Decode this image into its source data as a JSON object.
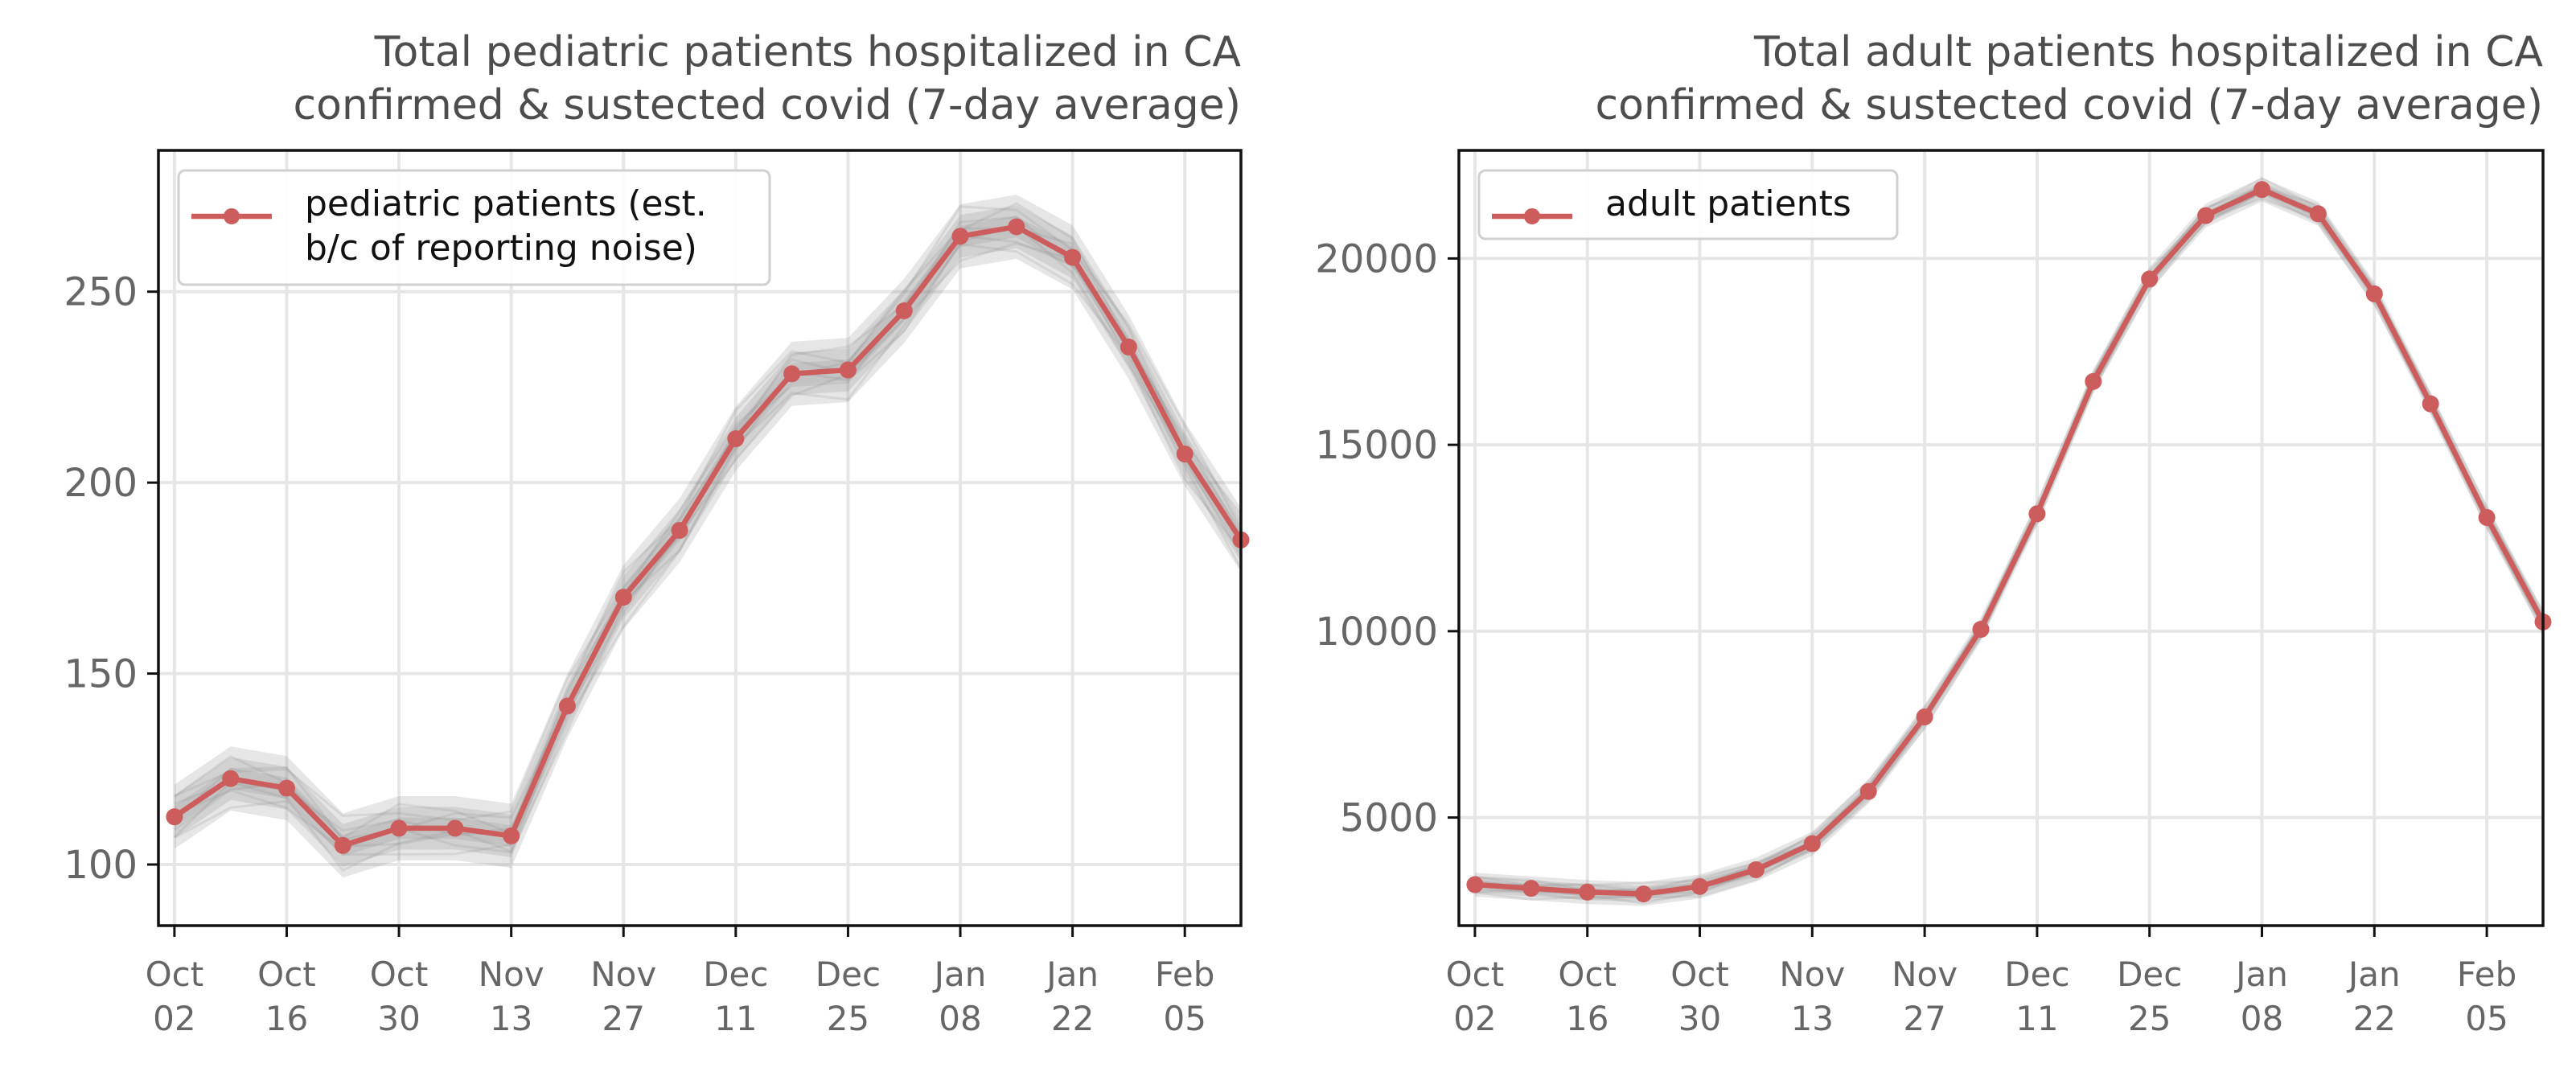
{
  "colors": {
    "series": "#cd5c5c",
    "band": "#8c8c8c"
  },
  "chart_data": [
    {
      "type": "line",
      "title": [
        "Total pediatric patients hospitalized in CA",
        "confirmed & sustected covid (7-day average)"
      ],
      "x": [
        "2022-10-02",
        "2022-10-09",
        "2022-10-16",
        "2022-10-23",
        "2022-10-30",
        "2022-11-06",
        "2022-11-13",
        "2022-11-20",
        "2022-11-27",
        "2022-12-04",
        "2022-12-11",
        "2022-12-18",
        "2022-12-25",
        "2023-01-01",
        "2023-01-08",
        "2023-01-15",
        "2023-01-22",
        "2023-01-29",
        "2023-02-05",
        "2023-02-12"
      ],
      "xticks": [
        {
          "date": "2022-10-02",
          "label": [
            "Oct",
            "02"
          ]
        },
        {
          "date": "2022-10-16",
          "label": [
            "Oct",
            "16"
          ]
        },
        {
          "date": "2022-10-30",
          "label": [
            "Oct",
            "30"
          ]
        },
        {
          "date": "2022-11-13",
          "label": [
            "Nov",
            "13"
          ]
        },
        {
          "date": "2022-11-27",
          "label": [
            "Nov",
            "27"
          ]
        },
        {
          "date": "2022-12-11",
          "label": [
            "Dec",
            "11"
          ]
        },
        {
          "date": "2022-12-25",
          "label": [
            "Dec",
            "25"
          ]
        },
        {
          "date": "2023-01-08",
          "label": [
            "Jan",
            "08"
          ]
        },
        {
          "date": "2023-01-22",
          "label": [
            "Jan",
            "22"
          ]
        },
        {
          "date": "2023-02-05",
          "label": [
            "Feb",
            "05"
          ]
        }
      ],
      "ylim": [
        84,
        287
      ],
      "yticks": [
        100,
        150,
        200,
        250
      ],
      "grid": true,
      "legend": {
        "placement": "upper-left",
        "lines": [
          "pediatric patients (est.",
          "b/c of reporting noise)"
        ]
      },
      "series": [
        {
          "values": [
            112.5,
            122.5,
            120,
            105,
            109.5,
            109.5,
            107.5,
            141.5,
            170,
            187.5,
            211.5,
            228.5,
            229.5,
            245,
            264.5,
            267,
            259,
            235.5,
            207.5,
            185
          ]
        }
      ],
      "band": {
        "half_width": 6
      }
    },
    {
      "type": "line",
      "title": [
        "Total adult patients hospitalized in CA",
        "confirmed & sustected covid (7-day average)"
      ],
      "x": [
        "2022-10-02",
        "2022-10-09",
        "2022-10-16",
        "2022-10-23",
        "2022-10-30",
        "2022-11-06",
        "2022-11-13",
        "2022-11-20",
        "2022-11-27",
        "2022-12-04",
        "2022-12-11",
        "2022-12-18",
        "2022-12-25",
        "2023-01-01",
        "2023-01-08",
        "2023-01-15",
        "2023-01-22",
        "2023-01-29",
        "2023-02-05",
        "2023-02-12"
      ],
      "xticks": [
        {
          "date": "2022-10-02",
          "label": [
            "Oct",
            "02"
          ]
        },
        {
          "date": "2022-10-16",
          "label": [
            "Oct",
            "16"
          ]
        },
        {
          "date": "2022-10-30",
          "label": [
            "Oct",
            "30"
          ]
        },
        {
          "date": "2022-11-13",
          "label": [
            "Nov",
            "13"
          ]
        },
        {
          "date": "2022-11-27",
          "label": [
            "Nov",
            "27"
          ]
        },
        {
          "date": "2022-12-11",
          "label": [
            "Dec",
            "11"
          ]
        },
        {
          "date": "2022-12-25",
          "label": [
            "Dec",
            "25"
          ]
        },
        {
          "date": "2023-01-08",
          "label": [
            "Jan",
            "08"
          ]
        },
        {
          "date": "2023-01-22",
          "label": [
            "Jan",
            "22"
          ]
        },
        {
          "date": "2023-02-05",
          "label": [
            "Feb",
            "05"
          ]
        }
      ],
      "ylim": [
        2100,
        22900
      ],
      "yticks": [
        5000,
        10000,
        15000,
        20000
      ],
      "grid": true,
      "legend": {
        "placement": "upper-left",
        "lines": [
          "adult patients"
        ]
      },
      "series": [
        {
          "values": [
            3200,
            3100,
            3000,
            2950,
            3150,
            3600,
            4300,
            5700,
            7700,
            10050,
            13150,
            16700,
            19450,
            21150,
            21850,
            21200,
            19050,
            16100,
            13050,
            10250
          ]
        }
      ],
      "band": {
        "half_width": 230
      }
    }
  ]
}
